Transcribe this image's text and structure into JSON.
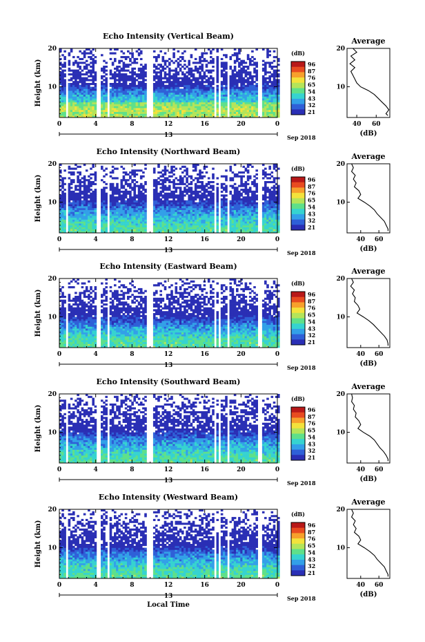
{
  "figure": {
    "xlabel": "Local Time",
    "date_label": "Sep 2018",
    "day_label": "13",
    "colorbar_title": "(dB)",
    "colorbar_ticks": [
      "96",
      "87",
      "76",
      "65",
      "54",
      "43",
      "32",
      "21"
    ],
    "avg_title": "Average",
    "avg_xlabel": "(dB)",
    "height_label": "Height (km)",
    "colormap": [
      "#2a2fb5",
      "#2f60d8",
      "#33a0e8",
      "#36d3d0",
      "#5fe08a",
      "#b4e45a",
      "#f3e23c",
      "#f7a02c",
      "#e84b20",
      "#b81818"
    ]
  },
  "chart_data": [
    {
      "type": "heatmap",
      "title": "Echo Intensity (Vertical Beam)",
      "xlabel": "Local Time",
      "ylabel": "Height (km)",
      "xlim": [
        0,
        24
      ],
      "ylim": [
        2,
        20
      ],
      "xticks": [
        "0",
        "4",
        "8",
        "12",
        "16",
        "20",
        "0"
      ],
      "yticks": [
        "20",
        "10"
      ],
      "clim": [
        21,
        96
      ],
      "data_gaps_hours": [
        [
          0.8,
          1.0
        ],
        [
          4.2,
          4.6
        ],
        [
          5.3,
          5.6
        ],
        [
          9.7,
          10.4
        ],
        [
          17.0,
          17.2
        ],
        [
          17.6,
          17.8
        ],
        [
          18.4,
          18.6
        ],
        [
          21.8,
          22.2
        ]
      ],
      "average_profile": {
        "title": "Average",
        "xlabel": "(dB)",
        "xticks": [
          "40",
          "60"
        ],
        "xlim": [
          30,
          74
        ],
        "height_km": [
          20,
          19,
          18,
          17,
          16,
          15,
          14,
          13,
          12,
          11,
          10,
          9,
          8,
          7,
          6,
          5,
          4,
          3,
          2.5
        ],
        "db": [
          36,
          40,
          34,
          38,
          33,
          38,
          34,
          36,
          38,
          40,
          44,
          52,
          58,
          62,
          66,
          70,
          73,
          70,
          72
        ]
      }
    },
    {
      "type": "heatmap",
      "title": "Echo Intensity (Northward Beam)",
      "xlabel": "Local Time",
      "ylabel": "Height (km)",
      "xlim": [
        0,
        24
      ],
      "ylim": [
        2,
        20
      ],
      "xticks": [
        "0",
        "4",
        "8",
        "12",
        "16",
        "20",
        "0"
      ],
      "yticks": [
        "20",
        "10"
      ],
      "clim": [
        21,
        96
      ],
      "data_gaps_hours": [
        [
          0.8,
          1.0
        ],
        [
          4.2,
          4.6
        ],
        [
          5.3,
          5.6
        ],
        [
          9.7,
          10.4
        ],
        [
          17.0,
          17.2
        ],
        [
          17.6,
          17.8
        ],
        [
          18.4,
          18.6
        ],
        [
          21.8,
          22.2
        ]
      ],
      "average_profile": {
        "title": "Average",
        "xlabel": "(dB)",
        "xticks": [
          "40",
          "60"
        ],
        "xlim": [
          25,
          72
        ],
        "height_km": [
          20,
          19,
          18,
          17,
          16,
          15,
          14,
          13,
          12,
          11,
          10,
          9,
          8,
          7,
          6,
          5,
          4,
          3,
          2.5
        ],
        "db": [
          30,
          32,
          30,
          34,
          32,
          35,
          33,
          38,
          40,
          37,
          44,
          50,
          55,
          58,
          62,
          66,
          68,
          70,
          70
        ]
      }
    },
    {
      "type": "heatmap",
      "title": "Echo Intensity (Eastward Beam)",
      "xlabel": "Local Time",
      "ylabel": "Height (km)",
      "xlim": [
        0,
        24
      ],
      "ylim": [
        2,
        20
      ],
      "xticks": [
        "0",
        "4",
        "8",
        "12",
        "16",
        "20",
        "0"
      ],
      "yticks": [
        "20",
        "10"
      ],
      "clim": [
        21,
        96
      ],
      "data_gaps_hours": [
        [
          0.8,
          1.0
        ],
        [
          4.2,
          4.6
        ],
        [
          5.3,
          5.6
        ],
        [
          9.7,
          10.4
        ],
        [
          17.0,
          17.2
        ],
        [
          17.6,
          17.8
        ],
        [
          18.4,
          18.6
        ],
        [
          21.8,
          22.2
        ]
      ],
      "average_profile": {
        "title": "Average",
        "xlabel": "(dB)",
        "xticks": [
          "40",
          "60"
        ],
        "xlim": [
          25,
          72
        ],
        "height_km": [
          20,
          19,
          18,
          17,
          16,
          15,
          14,
          13,
          12,
          11,
          10,
          9,
          8,
          7,
          6,
          5,
          4,
          3,
          2.5
        ],
        "db": [
          30,
          32,
          29,
          33,
          31,
          34,
          33,
          37,
          39,
          36,
          43,
          49,
          54,
          58,
          62,
          66,
          69,
          70,
          70
        ]
      }
    },
    {
      "type": "heatmap",
      "title": "Echo Intensity (Southward Beam)",
      "xlabel": "Local Time",
      "ylabel": "Height (km)",
      "xlim": [
        0,
        24
      ],
      "ylim": [
        2,
        20
      ],
      "xticks": [
        "0",
        "4",
        "8",
        "12",
        "16",
        "20",
        "0"
      ],
      "yticks": [
        "20",
        "10"
      ],
      "clim": [
        21,
        96
      ],
      "data_gaps_hours": [
        [
          0.8,
          1.0
        ],
        [
          4.2,
          4.6
        ],
        [
          5.3,
          5.6
        ],
        [
          9.7,
          10.4
        ],
        [
          17.0,
          17.2
        ],
        [
          17.6,
          17.8
        ],
        [
          18.4,
          18.6
        ],
        [
          21.8,
          22.2
        ]
      ],
      "average_profile": {
        "title": "Average",
        "xlabel": "(dB)",
        "xticks": [
          "40",
          "60"
        ],
        "xlim": [
          25,
          72
        ],
        "height_km": [
          20,
          19,
          18,
          17,
          16,
          15,
          14,
          13,
          12,
          11,
          10,
          9,
          8,
          7,
          6,
          5,
          4,
          3,
          2.5
        ],
        "db": [
          30,
          31,
          30,
          33,
          32,
          35,
          34,
          38,
          40,
          37,
          43,
          50,
          55,
          58,
          61,
          65,
          68,
          70,
          70
        ]
      }
    },
    {
      "type": "heatmap",
      "title": "Echo Intensity (Westward Beam)",
      "xlabel": "Local Time",
      "ylabel": "Height (km)",
      "xlim": [
        0,
        24
      ],
      "ylim": [
        2,
        20
      ],
      "xticks": [
        "0",
        "4",
        "8",
        "12",
        "16",
        "20",
        "0"
      ],
      "yticks": [
        "20",
        "10"
      ],
      "clim": [
        21,
        96
      ],
      "data_gaps_hours": [
        [
          0.8,
          1.0
        ],
        [
          4.2,
          4.6
        ],
        [
          5.3,
          5.6
        ],
        [
          9.7,
          10.4
        ],
        [
          17.0,
          17.2
        ],
        [
          17.6,
          17.8
        ],
        [
          18.4,
          18.6
        ],
        [
          21.8,
          22.2
        ]
      ],
      "average_profile": {
        "title": "Average",
        "xlabel": "(dB)",
        "xticks": [
          "40",
          "60"
        ],
        "xlim": [
          25,
          72
        ],
        "height_km": [
          20,
          19,
          18,
          17,
          16,
          15,
          14,
          13,
          12,
          11,
          10,
          9,
          8,
          7,
          6,
          5,
          4,
          3,
          2.5
        ],
        "db": [
          30,
          32,
          30,
          34,
          32,
          35,
          33,
          38,
          40,
          37,
          44,
          50,
          55,
          58,
          62,
          66,
          68,
          70,
          70
        ]
      }
    }
  ]
}
